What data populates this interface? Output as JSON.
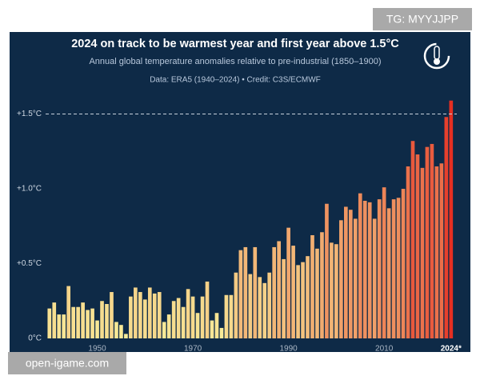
{
  "chart_data": {
    "type": "bar",
    "title": "2024 on track to be warmest year and first year above 1.5°C",
    "subtitle": "Annual global temperature anomalies relative to pre-industrial (1850–1900)",
    "source": "Data: ERA5 (1940–2024) • Credit: C3S/ECMWF",
    "x": [
      1940,
      1941,
      1942,
      1943,
      1944,
      1945,
      1946,
      1947,
      1948,
      1949,
      1950,
      1951,
      1952,
      1953,
      1954,
      1955,
      1956,
      1957,
      1958,
      1959,
      1960,
      1961,
      1962,
      1963,
      1964,
      1965,
      1966,
      1967,
      1968,
      1969,
      1970,
      1971,
      1972,
      1973,
      1974,
      1975,
      1976,
      1977,
      1978,
      1979,
      1980,
      1981,
      1982,
      1983,
      1984,
      1985,
      1986,
      1987,
      1988,
      1989,
      1990,
      1991,
      1992,
      1993,
      1994,
      1995,
      1996,
      1997,
      1998,
      1999,
      2000,
      2001,
      2002,
      2003,
      2004,
      2005,
      2006,
      2007,
      2008,
      2009,
      2010,
      2011,
      2012,
      2013,
      2014,
      2015,
      2016,
      2017,
      2018,
      2019,
      2020,
      2021,
      2022,
      2023,
      2024
    ],
    "values": [
      0.2,
      0.24,
      0.16,
      0.16,
      0.35,
      0.21,
      0.21,
      0.24,
      0.19,
      0.2,
      0.12,
      0.25,
      0.23,
      0.31,
      0.11,
      0.09,
      0.03,
      0.28,
      0.34,
      0.31,
      0.26,
      0.34,
      0.3,
      0.31,
      0.11,
      0.16,
      0.25,
      0.27,
      0.21,
      0.33,
      0.28,
      0.17,
      0.28,
      0.38,
      0.12,
      0.17,
      0.07,
      0.29,
      0.29,
      0.44,
      0.59,
      0.61,
      0.43,
      0.61,
      0.41,
      0.37,
      0.44,
      0.61,
      0.65,
      0.53,
      0.74,
      0.62,
      0.49,
      0.51,
      0.55,
      0.69,
      0.6,
      0.71,
      0.9,
      0.64,
      0.63,
      0.79,
      0.88,
      0.86,
      0.8,
      0.97,
      0.92,
      0.91,
      0.8,
      0.93,
      1.01,
      0.87,
      0.93,
      0.94,
      1.0,
      1.15,
      1.32,
      1.23,
      1.14,
      1.28,
      1.3,
      1.15,
      1.17,
      1.48,
      1.59
    ],
    "color_scale": [
      "#f8ee9a",
      "#e3261c"
    ],
    "xlim": [
      1939.2,
      2025.2
    ],
    "xticks": [
      1950,
      1970,
      1990,
      2010,
      {
        "value": 2024,
        "label": "2024*"
      }
    ],
    "ylim": [
      0,
      1.65
    ],
    "yticks": [
      {
        "value": 0,
        "label": "0°C"
      },
      {
        "value": 0.5,
        "label": "+0.5°C"
      },
      {
        "value": 1.0,
        "label": "+1.0°C"
      },
      {
        "value": 1.5,
        "label": "+1.5°C"
      }
    ],
    "reference_line": 1.5
  },
  "watermark_top": "TG: MYYJJPP",
  "watermark_bottom": "open-igame.com"
}
